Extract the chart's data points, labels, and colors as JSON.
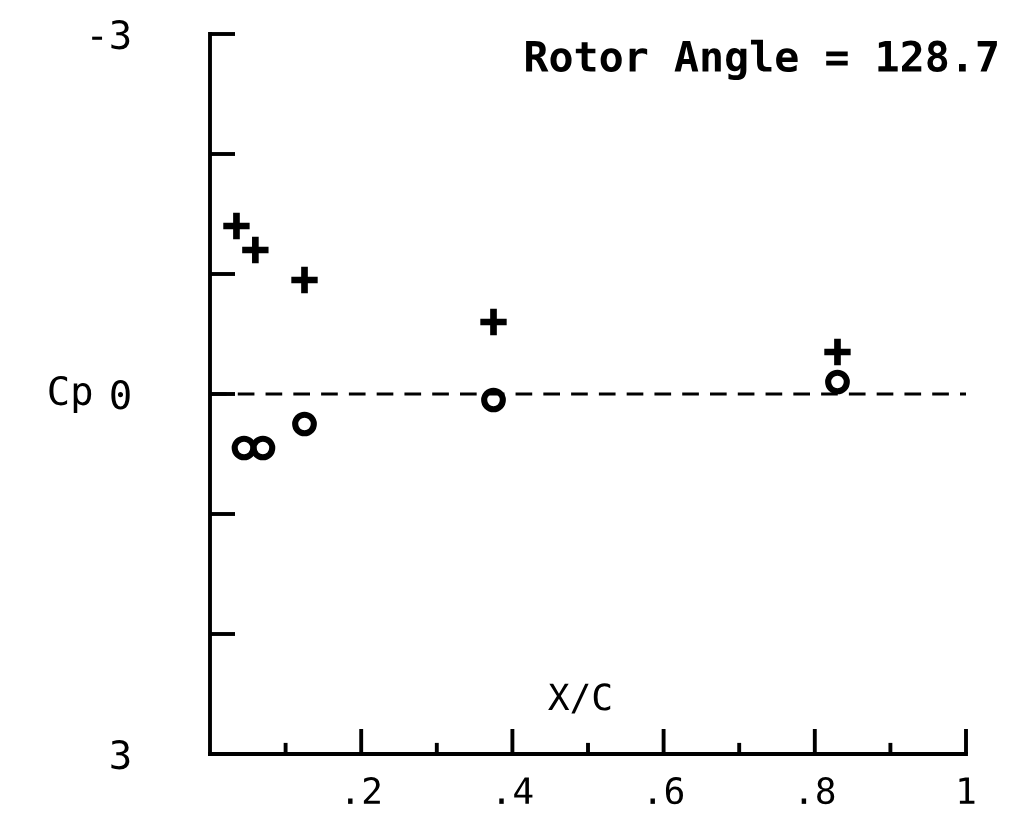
{
  "chart_data": {
    "type": "scatter",
    "title": "Rotor Angle = 128.7",
    "xlabel": "X/C",
    "ylabel": "Cp",
    "series": [
      {
        "color": "#000000",
        "marker": "cross",
        "x": [
          0.035,
          0.06,
          0.125,
          0.375,
          0.83
        ],
        "values": [
          -1.4,
          -1.2,
          -0.95,
          -0.6,
          -0.35
        ]
      },
      {
        "color": "#000000",
        "marker": "circle",
        "x": [
          0.045,
          0.07,
          0.125,
          0.375,
          0.83
        ],
        "values": [
          0.45,
          0.45,
          0.25,
          0.05,
          -0.1
        ]
      }
    ],
    "xlim": [
      0,
      1
    ],
    "xticks": [
      {
        "value": 0.1,
        "label": null
      },
      {
        "value": 0.2,
        "label": ".2"
      },
      {
        "value": 0.3,
        "label": null
      },
      {
        "value": 0.4,
        "label": ".4"
      },
      {
        "value": 0.5,
        "label": null
      },
      {
        "value": 0.6,
        "label": ".6"
      },
      {
        "value": 0.7,
        "label": null
      },
      {
        "value": 0.8,
        "label": ".8"
      },
      {
        "value": 0.9,
        "label": null
      },
      1
    ],
    "ylim": [
      3,
      -3
    ],
    "yticks": [
      {
        "value": -3,
        "label": "-3"
      },
      {
        "value": -2,
        "label": null
      },
      {
        "value": -1,
        "label": null
      },
      0,
      {
        "value": 1,
        "label": null
      },
      {
        "value": 2,
        "label": null
      },
      3
    ],
    "ref_lines": [
      {
        "axis": "y",
        "value": 0,
        "color": "#000000",
        "line_style": "dashed"
      }
    ]
  }
}
